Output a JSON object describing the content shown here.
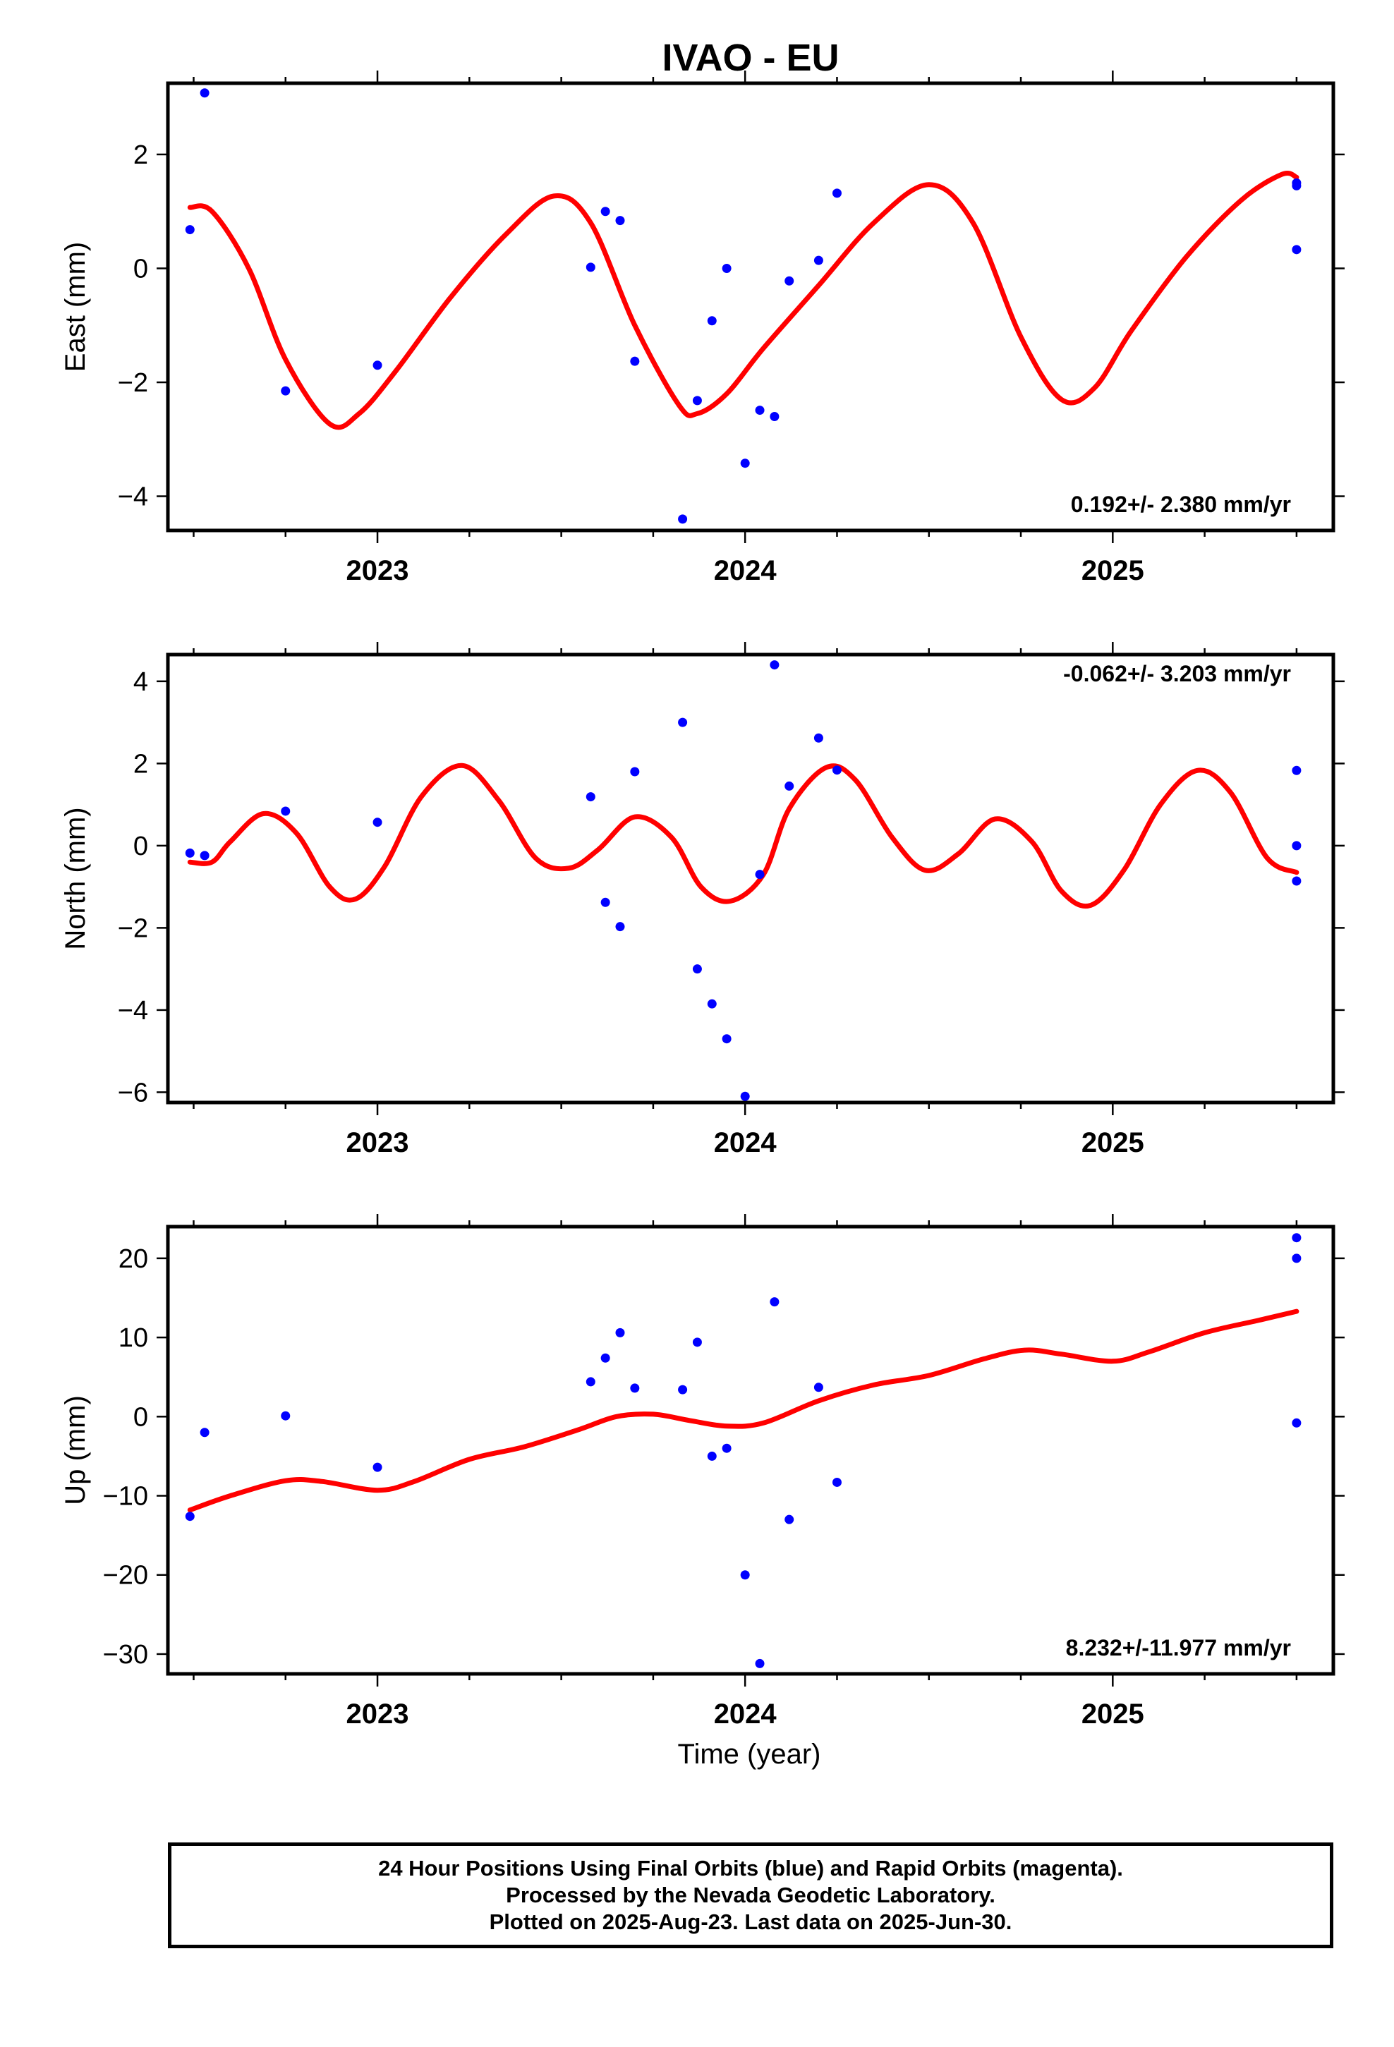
{
  "title": "IVAO - EU",
  "xlabel": "Time (year)",
  "footer": {
    "lines": [
      "24 Hour Positions Using Final Orbits (blue) and Rapid Orbits (magenta).",
      "Processed by the Nevada Geodetic Laboratory.",
      "Plotted on 2025-Aug-23. Last data on 2025-Jun-30."
    ]
  },
  "colors": {
    "data_points": "#0000ff",
    "model_curve": "#ff0000"
  },
  "chart_data": [
    {
      "type": "scatter",
      "ylabel": "East (mm)",
      "rate_label": "0.192+/- 2.380 mm/yr",
      "xlim": [
        2022.43,
        2025.6
      ],
      "ylim": [
        -4.6,
        3.25
      ],
      "x_ticks": [
        2023,
        2024,
        2025
      ],
      "x_tick_labels": [
        "2023",
        "2024",
        "2025"
      ],
      "y_ticks": [
        2,
        0,
        -2,
        -4
      ],
      "y_tick_labels": [
        "2",
        "0",
        "−2",
        "−4"
      ],
      "points": [
        [
          2022.49,
          0.68
        ],
        [
          2022.53,
          3.08
        ],
        [
          2022.75,
          -2.15
        ],
        [
          2023.0,
          -1.7
        ],
        [
          2023.58,
          0.02
        ],
        [
          2023.62,
          1.0
        ],
        [
          2023.66,
          0.84
        ],
        [
          2023.7,
          -1.63
        ],
        [
          2023.83,
          -4.4
        ],
        [
          2023.87,
          -2.32
        ],
        [
          2023.91,
          -0.92
        ],
        [
          2023.95,
          0.0
        ],
        [
          2024.0,
          -3.42
        ],
        [
          2024.04,
          -2.49
        ],
        [
          2024.08,
          -2.6
        ],
        [
          2024.12,
          -0.22
        ],
        [
          2024.2,
          0.14
        ],
        [
          2024.25,
          1.32
        ],
        [
          2025.5,
          0.33
        ],
        [
          2025.5,
          1.45
        ],
        [
          2025.5,
          1.5
        ]
      ],
      "model": [
        [
          2022.49,
          1.07
        ],
        [
          2022.55,
          1.0
        ],
        [
          2022.65,
          0.0
        ],
        [
          2022.75,
          -1.6
        ],
        [
          2022.87,
          -2.73
        ],
        [
          2022.95,
          -2.55
        ],
        [
          2023.05,
          -1.8
        ],
        [
          2023.2,
          -0.5
        ],
        [
          2023.35,
          0.6
        ],
        [
          2023.48,
          1.27
        ],
        [
          2023.58,
          0.8
        ],
        [
          2023.7,
          -1.0
        ],
        [
          2023.82,
          -2.4
        ],
        [
          2023.87,
          -2.55
        ],
        [
          2023.95,
          -2.2
        ],
        [
          2024.05,
          -1.4
        ],
        [
          2024.2,
          -0.3
        ],
        [
          2024.35,
          0.8
        ],
        [
          2024.5,
          1.47
        ],
        [
          2024.62,
          0.8
        ],
        [
          2024.75,
          -1.2
        ],
        [
          2024.86,
          -2.3
        ],
        [
          2024.95,
          -2.1
        ],
        [
          2025.05,
          -1.1
        ],
        [
          2025.2,
          0.2
        ],
        [
          2025.35,
          1.2
        ],
        [
          2025.46,
          1.65
        ],
        [
          2025.5,
          1.6
        ]
      ]
    },
    {
      "type": "scatter",
      "ylabel": "North (mm)",
      "rate_label": "-0.062+/- 3.203 mm/yr",
      "xlim": [
        2022.43,
        2025.6
      ],
      "ylim": [
        -6.25,
        4.65
      ],
      "x_ticks": [
        2023,
        2024,
        2025
      ],
      "x_tick_labels": [
        "2023",
        "2024",
        "2025"
      ],
      "y_ticks": [
        4,
        2,
        0,
        -2,
        -4,
        -6
      ],
      "y_tick_labels": [
        "4",
        "2",
        "0",
        "−2",
        "−4",
        "−6"
      ],
      "points": [
        [
          2022.49,
          -0.18
        ],
        [
          2022.53,
          -0.24
        ],
        [
          2022.75,
          0.84
        ],
        [
          2023.0,
          0.57
        ],
        [
          2023.58,
          1.19
        ],
        [
          2023.62,
          -1.38
        ],
        [
          2023.66,
          -1.97
        ],
        [
          2023.7,
          1.8
        ],
        [
          2023.83,
          3.0
        ],
        [
          2023.87,
          -3.0
        ],
        [
          2023.91,
          -3.85
        ],
        [
          2023.95,
          -4.7
        ],
        [
          2024.0,
          -6.1
        ],
        [
          2024.04,
          -0.7
        ],
        [
          2024.08,
          4.4
        ],
        [
          2024.12,
          1.45
        ],
        [
          2024.2,
          2.62
        ],
        [
          2024.25,
          1.84
        ],
        [
          2025.5,
          1.83
        ],
        [
          2025.5,
          0.0
        ],
        [
          2025.5,
          -0.86
        ]
      ],
      "model": [
        [
          2022.49,
          -0.4
        ],
        [
          2022.55,
          -0.4
        ],
        [
          2022.6,
          0.1
        ],
        [
          2022.69,
          0.78
        ],
        [
          2022.78,
          0.3
        ],
        [
          2022.87,
          -1.0
        ],
        [
          2022.94,
          -1.3
        ],
        [
          2023.02,
          -0.5
        ],
        [
          2023.12,
          1.2
        ],
        [
          2023.23,
          1.95
        ],
        [
          2023.33,
          1.1
        ],
        [
          2023.43,
          -0.3
        ],
        [
          2023.52,
          -0.55
        ],
        [
          2023.6,
          -0.1
        ],
        [
          2023.7,
          0.7
        ],
        [
          2023.8,
          0.2
        ],
        [
          2023.88,
          -1.0
        ],
        [
          2023.96,
          -1.35
        ],
        [
          2024.05,
          -0.7
        ],
        [
          2024.12,
          0.9
        ],
        [
          2024.22,
          1.9
        ],
        [
          2024.3,
          1.6
        ],
        [
          2024.4,
          0.2
        ],
        [
          2024.49,
          -0.6
        ],
        [
          2024.58,
          -0.2
        ],
        [
          2024.68,
          0.65
        ],
        [
          2024.78,
          0.1
        ],
        [
          2024.86,
          -1.1
        ],
        [
          2024.94,
          -1.45
        ],
        [
          2025.03,
          -0.6
        ],
        [
          2025.13,
          1.0
        ],
        [
          2025.23,
          1.83
        ],
        [
          2025.32,
          1.3
        ],
        [
          2025.42,
          -0.3
        ],
        [
          2025.5,
          -0.65
        ]
      ]
    },
    {
      "type": "scatter",
      "ylabel": "Up (mm)",
      "rate_label": "8.232+/-11.977 mm/yr",
      "xlim": [
        2022.43,
        2025.6
      ],
      "ylim": [
        -32.5,
        24.0
      ],
      "x_ticks": [
        2023,
        2024,
        2025
      ],
      "x_tick_labels": [
        "2023",
        "2024",
        "2025"
      ],
      "y_ticks": [
        20,
        10,
        0,
        -10,
        -20,
        -30
      ],
      "y_tick_labels": [
        "20",
        "10",
        "0",
        "−10",
        "−20",
        "−30"
      ],
      "points": [
        [
          2022.49,
          -12.6
        ],
        [
          2022.53,
          -2.0
        ],
        [
          2022.75,
          0.1
        ],
        [
          2023.0,
          -6.4
        ],
        [
          2023.58,
          4.4
        ],
        [
          2023.62,
          7.4
        ],
        [
          2023.66,
          10.6
        ],
        [
          2023.7,
          3.6
        ],
        [
          2023.83,
          3.4
        ],
        [
          2023.87,
          9.4
        ],
        [
          2023.91,
          -5.0
        ],
        [
          2023.95,
          -4.0
        ],
        [
          2024.0,
          -20.0
        ],
        [
          2024.04,
          -31.2
        ],
        [
          2024.08,
          14.5
        ],
        [
          2024.12,
          -13.0
        ],
        [
          2024.2,
          3.7
        ],
        [
          2024.25,
          -8.3
        ],
        [
          2025.5,
          22.6
        ],
        [
          2025.5,
          20.0
        ],
        [
          2025.5,
          -0.8
        ]
      ],
      "model": [
        [
          2022.49,
          -11.8
        ],
        [
          2022.6,
          -10.0
        ],
        [
          2022.75,
          -8.1
        ],
        [
          2022.85,
          -8.2
        ],
        [
          2023.0,
          -9.3
        ],
        [
          2023.1,
          -8.2
        ],
        [
          2023.25,
          -5.4
        ],
        [
          2023.4,
          -3.8
        ],
        [
          2023.55,
          -1.6
        ],
        [
          2023.65,
          0.0
        ],
        [
          2023.75,
          0.3
        ],
        [
          2023.85,
          -0.5
        ],
        [
          2023.95,
          -1.2
        ],
        [
          2024.05,
          -0.8
        ],
        [
          2024.2,
          2.0
        ],
        [
          2024.35,
          4.0
        ],
        [
          2024.5,
          5.2
        ],
        [
          2024.65,
          7.3
        ],
        [
          2024.76,
          8.4
        ],
        [
          2024.86,
          7.9
        ],
        [
          2025.0,
          7.0
        ],
        [
          2025.1,
          8.2
        ],
        [
          2025.25,
          10.6
        ],
        [
          2025.4,
          12.2
        ],
        [
          2025.5,
          13.3
        ]
      ]
    }
  ]
}
